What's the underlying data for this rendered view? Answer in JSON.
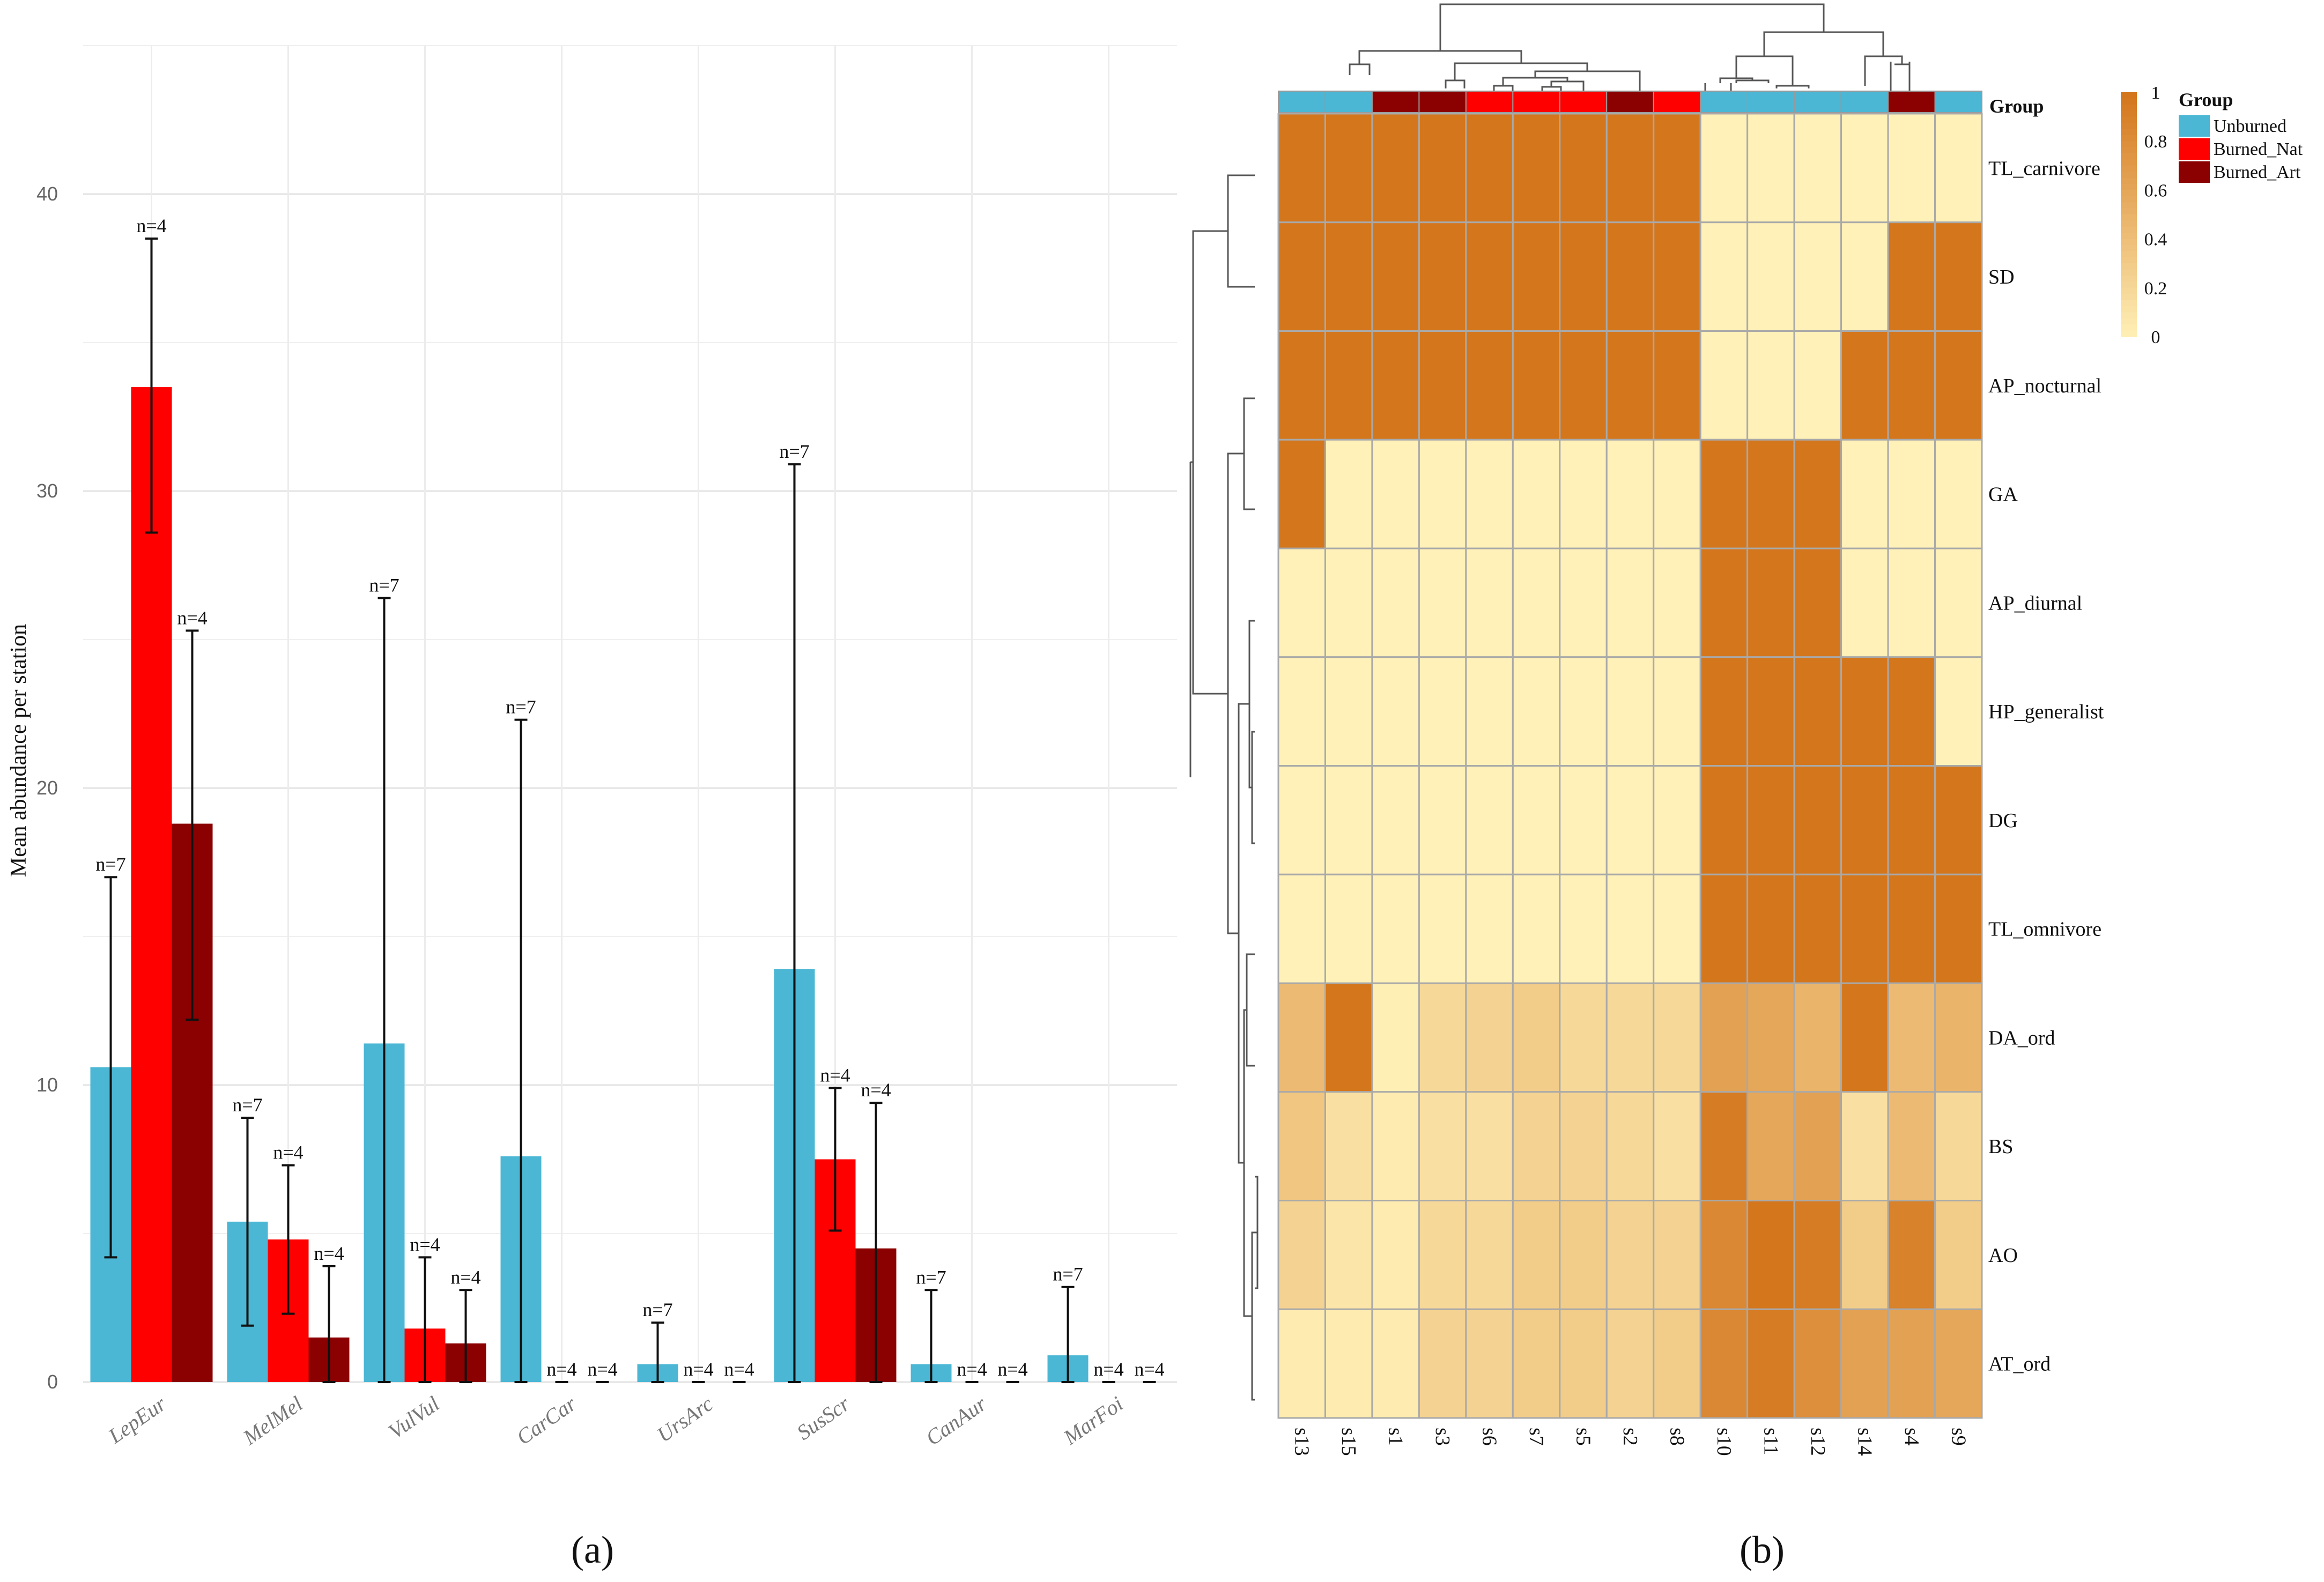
{
  "panels": [
    "(a)",
    "(b)"
  ],
  "chart_data": [
    {
      "type": "bar",
      "title": "",
      "xlabel": "",
      "ylabel": "Mean abundance per station",
      "ylim": [
        0,
        45
      ],
      "yticks": [
        0,
        10,
        20,
        30,
        40
      ],
      "grid": true,
      "categories": [
        "LepEur",
        "MelMel",
        "VulVul",
        "CarCar",
        "UrsArc",
        "SusScr",
        "CanAur",
        "MarFoi"
      ],
      "colors": {
        "Unburned": "#4BB7D4",
        "Burned_Nat": "#FF0000",
        "Burned_Art": "#8B0000"
      },
      "series": [
        {
          "group": "Unburned",
          "values": [
            10.6,
            5.4,
            11.4,
            7.6,
            0.6,
            13.9,
            0.6,
            0.9
          ],
          "err_low": [
            4.2,
            1.9,
            0.0,
            0.0,
            0.0,
            0.0,
            0.0,
            0.0
          ],
          "err_high": [
            17.0,
            8.9,
            26.4,
            22.3,
            2.0,
            30.9,
            3.1,
            3.2
          ],
          "n": [
            "n=7",
            "n=7",
            "n=7",
            "n=7",
            "n=7",
            "n=7",
            "n=7",
            "n=7"
          ]
        },
        {
          "group": "Burned_Nat",
          "values": [
            33.5,
            4.8,
            1.8,
            0.0,
            0.0,
            7.5,
            0.0,
            0.0
          ],
          "err_low": [
            28.6,
            2.3,
            0.0,
            0.0,
            0.0,
            5.1,
            0.0,
            0.0
          ],
          "err_high": [
            38.5,
            7.3,
            4.2,
            0.0,
            0.0,
            9.9,
            0.0,
            0.0
          ],
          "n": [
            "n=4",
            "n=4",
            "n=4",
            "n=4",
            "n=4",
            "n=4",
            "n=4",
            "n=4"
          ]
        },
        {
          "group": "Burned_Art",
          "values": [
            18.8,
            1.5,
            1.3,
            0.0,
            0.0,
            4.5,
            0.0,
            0.0
          ],
          "err_low": [
            12.2,
            0.0,
            0.0,
            0.0,
            0.0,
            0.0,
            0.0,
            0.0
          ],
          "err_high": [
            25.3,
            3.9,
            3.1,
            0.0,
            0.0,
            9.4,
            0.0,
            0.0
          ],
          "n": [
            "n=4",
            "n=4",
            "n=4",
            "n=4",
            "n=4",
            "n=4",
            "n=4",
            "n=4"
          ]
        }
      ]
    },
    {
      "type": "heatmap",
      "title": "",
      "columns": [
        "s13",
        "s15",
        "s1",
        "s3",
        "s6",
        "s7",
        "s5",
        "s2",
        "s8",
        "s10",
        "s11",
        "s12",
        "s14",
        "s4",
        "s9"
      ],
      "column_groups": [
        "Unburned",
        "Unburned",
        "Burned_Art",
        "Burned_Art",
        "Burned_Nat",
        "Burned_Nat",
        "Burned_Nat",
        "Burned_Art",
        "Burned_Nat",
        "Unburned",
        "Unburned",
        "Unburned",
        "Unburned",
        "Burned_Art",
        "Unburned"
      ],
      "rows": [
        "TL_carnivore",
        "SD",
        "AP_nocturnal",
        "GA",
        "AP_diurnal",
        "HP_generalist",
        "DG",
        "TL_omnivore",
        "DA_ord",
        "BS",
        "AO",
        "AT_ord"
      ],
      "values": [
        [
          1,
          1,
          1,
          1,
          1,
          1,
          1,
          1,
          1,
          0,
          0,
          0,
          0,
          0,
          0
        ],
        [
          1,
          1,
          1,
          1,
          1,
          1,
          1,
          1,
          1,
          0,
          0,
          0,
          0,
          1,
          1
        ],
        [
          1,
          1,
          1,
          1,
          1,
          1,
          1,
          1,
          1,
          0,
          0,
          0,
          1,
          1,
          1
        ],
        [
          1,
          0,
          0,
          0,
          0,
          0,
          0,
          0,
          0,
          1,
          1,
          1,
          0,
          0,
          0
        ],
        [
          0,
          0,
          0,
          0,
          0,
          0,
          0,
          0,
          0,
          1,
          1,
          1,
          0,
          0,
          0
        ],
        [
          0,
          0,
          0,
          0,
          0,
          0,
          0,
          0,
          0,
          1,
          1,
          1,
          1,
          1,
          0
        ],
        [
          0,
          0,
          0,
          0,
          0,
          0,
          0,
          0,
          0,
          1,
          1,
          1,
          1,
          1,
          1
        ],
        [
          0,
          0,
          0,
          0,
          0,
          0,
          0,
          0,
          0,
          1,
          1,
          1,
          1,
          1,
          1
        ],
        [
          0.45,
          1.0,
          0.02,
          0.2,
          0.25,
          0.3,
          0.2,
          0.2,
          0.2,
          0.65,
          0.6,
          0.5,
          1.0,
          0.45,
          0.5
        ],
        [
          0.35,
          0.15,
          0.05,
          0.15,
          0.15,
          0.25,
          0.25,
          0.2,
          0.15,
          0.95,
          0.6,
          0.65,
          0.15,
          0.45,
          0.2
        ],
        [
          0.25,
          0.1,
          0.05,
          0.2,
          0.2,
          0.3,
          0.3,
          0.25,
          0.25,
          0.85,
          1.0,
          0.95,
          0.3,
          0.9,
          0.3
        ],
        [
          0.05,
          0.05,
          0.05,
          0.25,
          0.25,
          0.3,
          0.3,
          0.25,
          0.3,
          0.85,
          0.95,
          0.8,
          0.65,
          0.65,
          0.6
        ]
      ],
      "color_scale": {
        "low": "#FFF1B8",
        "high": "#D4761C",
        "min": 0,
        "max": 1,
        "ticks": [
          "1",
          "0.8",
          "0.6",
          "0.4",
          "0.2",
          "0"
        ]
      },
      "legend": {
        "title": "Group",
        "entries": [
          {
            "label": "Unburned",
            "color": "#4BB7D4"
          },
          {
            "label": "Burned_Nat",
            "color": "#FF0000"
          },
          {
            "label": "Burned_Art",
            "color": "#8B0000"
          }
        ]
      },
      "annotation_row_label": "Group"
    }
  ]
}
